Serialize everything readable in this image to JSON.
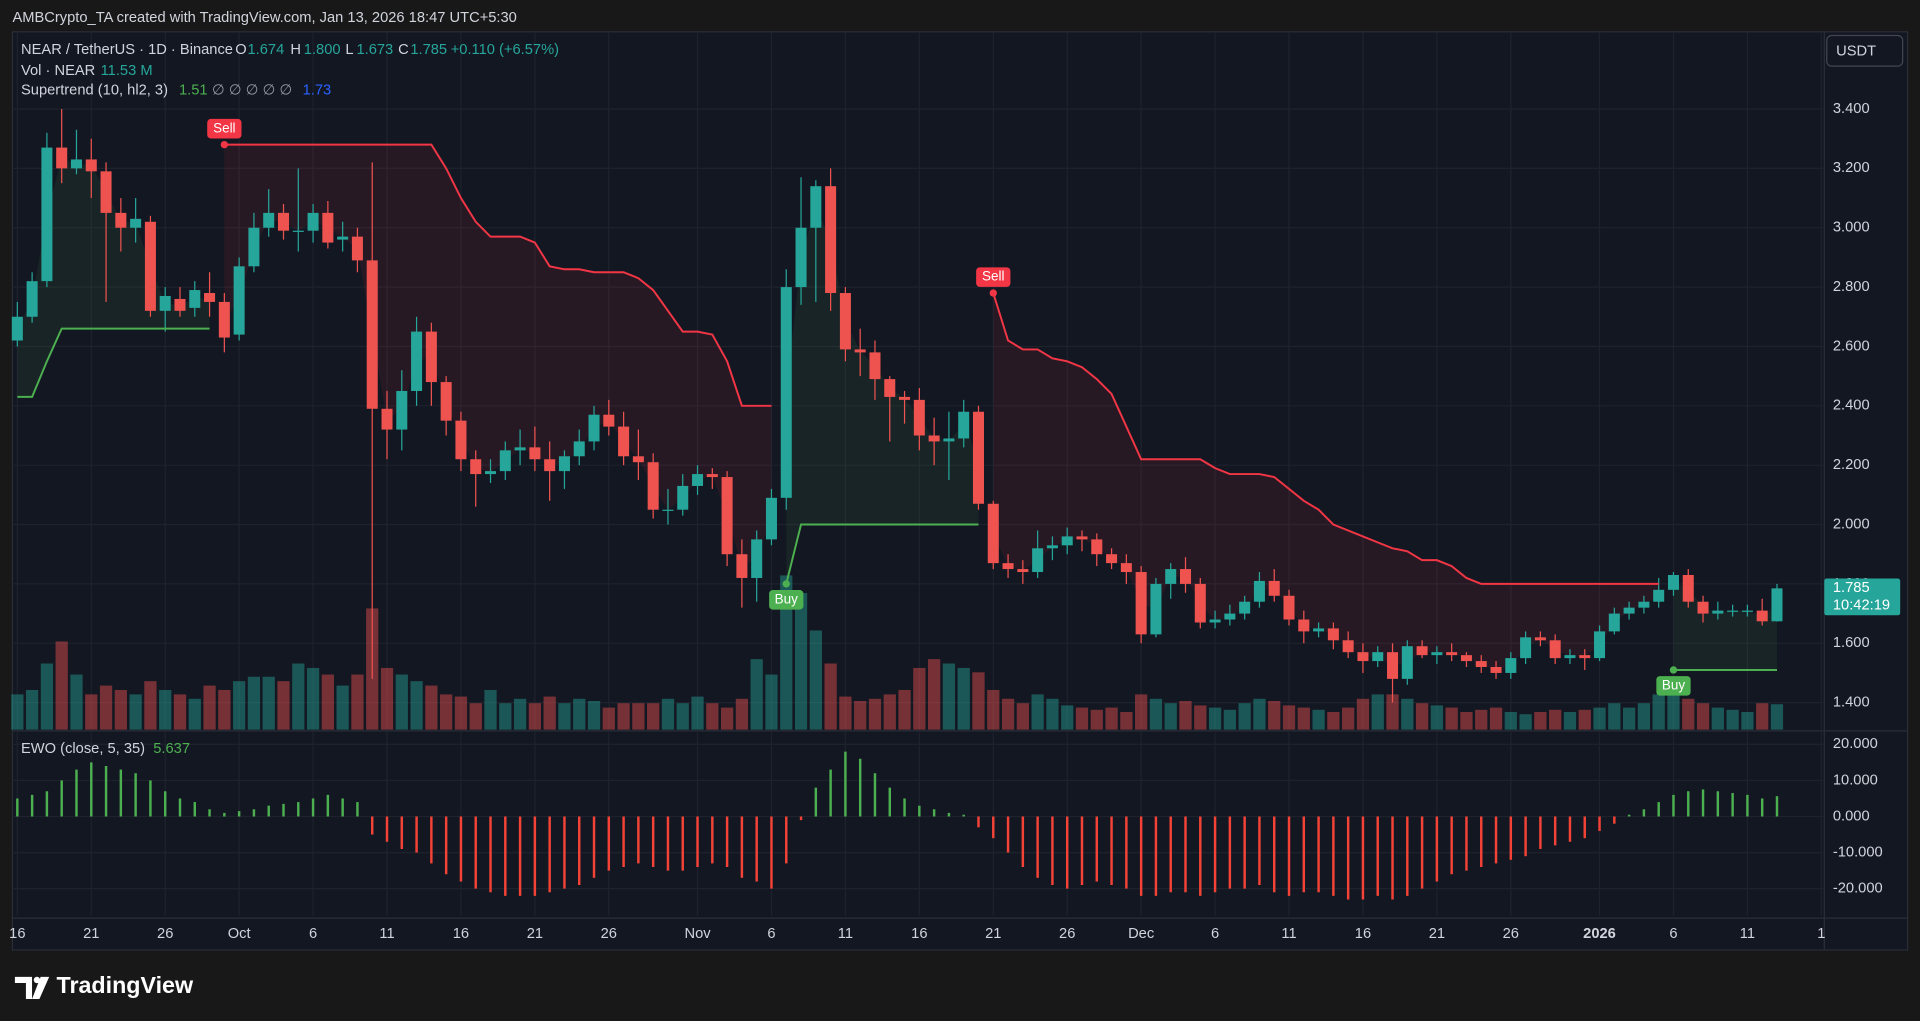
{
  "header": "AMBCrypto_TA created with TradingView.com, Jan 13, 2026 18:47 UTC+5:30",
  "chart_data": {
    "type": "candlestick",
    "currency": "USDT",
    "legend": {
      "symbol": "NEAR / TetherUS · 1D · Binance",
      "o_label": "O",
      "open": "1.674",
      "h_label": "H",
      "high": "1.800",
      "l_label": "L",
      "low": "1.673",
      "c_label": "C",
      "close": "1.785",
      "change": "+0.110 (+6.57%)"
    },
    "grid": true,
    "up_color": "#26a69a",
    "down_color": "#ef5350",
    "xlim": [
      -0.33,
      122.2
    ],
    "xticks": [
      {
        "value": 0,
        "label": "16"
      },
      {
        "value": 5,
        "label": "21"
      },
      {
        "value": 10,
        "label": "26"
      },
      {
        "value": 15,
        "label": "Oct"
      },
      {
        "value": 20,
        "label": "6"
      },
      {
        "value": 25,
        "label": "11"
      },
      {
        "value": 30,
        "label": "16"
      },
      {
        "value": 35,
        "label": "21"
      },
      {
        "value": 40,
        "label": "26"
      },
      {
        "value": 46,
        "label": "Nov"
      },
      {
        "value": 51,
        "label": "6"
      },
      {
        "value": 56,
        "label": "11"
      },
      {
        "value": 61,
        "label": "16"
      },
      {
        "value": 66,
        "label": "21"
      },
      {
        "value": 71,
        "label": "26"
      },
      {
        "value": 76,
        "label": "Dec"
      },
      {
        "value": 81,
        "label": "6"
      },
      {
        "value": 86,
        "label": "11"
      },
      {
        "value": 91,
        "label": "16"
      },
      {
        "value": 96,
        "label": "21"
      },
      {
        "value": 101,
        "label": "26"
      },
      {
        "value": 107,
        "label": "2026"
      },
      {
        "value": 112,
        "label": "6"
      },
      {
        "value": 117,
        "label": "11"
      },
      {
        "value": 122,
        "label": "1"
      }
    ],
    "ylim": [
      1.309,
      3.66
    ],
    "yticks": [
      {
        "value": 1.4,
        "label": "1.400"
      },
      {
        "value": 1.6,
        "label": "1.600"
      },
      {
        "value": 1.8,
        "label": "1.800"
      },
      {
        "value": 2.0,
        "label": "2.000"
      },
      {
        "value": 2.2,
        "label": "2.200"
      },
      {
        "value": 2.4,
        "label": "2.400"
      },
      {
        "value": 2.6,
        "label": "2.600"
      },
      {
        "value": 2.8,
        "label": "2.800"
      },
      {
        "value": 3.0,
        "label": "3.000"
      },
      {
        "value": 3.2,
        "label": "3.200"
      },
      {
        "value": 3.4,
        "label": "3.400"
      }
    ],
    "open": [
      2.62,
      2.7,
      2.82,
      3.27,
      3.2,
      3.23,
      3.19,
      3.05,
      3.0,
      3.02,
      2.72,
      2.76,
      2.73,
      2.78,
      2.75,
      2.64,
      2.87,
      3.0,
      3.05,
      2.99,
      2.99,
      3.05,
      2.96,
      2.97,
      2.89,
      2.39,
      2.32,
      2.45,
      2.65,
      2.48,
      2.35,
      2.22,
      2.17,
      2.18,
      2.25,
      2.26,
      2.22,
      2.18,
      2.23,
      2.28,
      2.37,
      2.33,
      2.23,
      2.21,
      2.05,
      2.05,
      2.13,
      2.17,
      2.16,
      1.9,
      1.82,
      1.95,
      2.09,
      2.8,
      3.0,
      3.14,
      2.78,
      2.59,
      2.58,
      2.49,
      2.43,
      2.42,
      2.3,
      2.28,
      2.29,
      2.38,
      2.07,
      1.87,
      1.85,
      1.84,
      1.92,
      1.93,
      1.96,
      1.95,
      1.9,
      1.87,
      1.84,
      1.63,
      1.8,
      1.85,
      1.8,
      1.67,
      1.68,
      1.7,
      1.74,
      1.81,
      1.76,
      1.68,
      1.64,
      1.65,
      1.61,
      1.57,
      1.54,
      1.57,
      1.48,
      1.59,
      1.56,
      1.57,
      1.56,
      1.54,
      1.52,
      1.5,
      1.55,
      1.62,
      1.61,
      1.55,
      1.56,
      1.55,
      1.64,
      1.7,
      1.72,
      1.74,
      1.78,
      1.83,
      1.74,
      1.7,
      1.71,
      1.71,
      1.71,
      1.674
    ],
    "high": [
      2.75,
      2.85,
      3.32,
      3.4,
      3.33,
      3.3,
      3.22,
      3.1,
      3.1,
      3.04,
      2.8,
      2.8,
      2.82,
      2.85,
      2.78,
      2.9,
      3.05,
      3.13,
      3.08,
      3.2,
      3.08,
      3.09,
      3.02,
      3.0,
      3.22,
      2.45,
      2.52,
      2.7,
      2.68,
      2.5,
      2.38,
      2.25,
      2.22,
      2.28,
      2.32,
      2.33,
      2.28,
      2.25,
      2.32,
      2.4,
      2.42,
      2.38,
      2.32,
      2.24,
      2.12,
      2.17,
      2.2,
      2.19,
      2.18,
      1.95,
      1.98,
      2.12,
      2.86,
      3.17,
      3.16,
      3.2,
      2.8,
      2.66,
      2.62,
      2.5,
      2.45,
      2.46,
      2.36,
      2.38,
      2.42,
      2.4,
      2.08,
      1.9,
      1.88,
      1.98,
      1.96,
      1.99,
      1.98,
      1.97,
      1.92,
      1.9,
      1.86,
      1.82,
      1.87,
      1.89,
      1.82,
      1.71,
      1.73,
      1.76,
      1.84,
      1.85,
      1.78,
      1.71,
      1.67,
      1.67,
      1.64,
      1.6,
      1.59,
      1.6,
      1.61,
      1.61,
      1.59,
      1.6,
      1.57,
      1.56,
      1.54,
      1.57,
      1.64,
      1.64,
      1.63,
      1.58,
      1.58,
      1.66,
      1.72,
      1.74,
      1.76,
      1.82,
      1.84,
      1.85,
      1.76,
      1.74,
      1.73,
      1.73,
      1.75,
      1.8
    ],
    "low": [
      2.6,
      2.68,
      2.8,
      3.15,
      3.18,
      3.1,
      2.75,
      2.92,
      2.95,
      2.7,
      2.65,
      2.7,
      2.7,
      2.7,
      2.58,
      2.62,
      2.85,
      2.97,
      2.96,
      2.92,
      2.95,
      2.93,
      2.92,
      2.85,
      1.48,
      2.22,
      2.25,
      2.4,
      2.4,
      2.3,
      2.18,
      2.06,
      2.14,
      2.15,
      2.2,
      2.18,
      2.08,
      2.12,
      2.2,
      2.25,
      2.3,
      2.2,
      2.15,
      2.02,
      2.0,
      2.03,
      2.1,
      2.12,
      1.86,
      1.72,
      1.74,
      1.93,
      2.05,
      2.74,
      2.75,
      2.72,
      2.55,
      2.5,
      2.42,
      2.28,
      2.34,
      2.25,
      2.2,
      2.15,
      2.26,
      2.05,
      1.85,
      1.82,
      1.8,
      1.82,
      1.88,
      1.9,
      1.91,
      1.86,
      1.85,
      1.8,
      1.6,
      1.62,
      1.75,
      1.77,
      1.65,
      1.65,
      1.66,
      1.68,
      1.72,
      1.74,
      1.66,
      1.6,
      1.62,
      1.58,
      1.55,
      1.5,
      1.52,
      1.4,
      1.46,
      1.55,
      1.53,
      1.54,
      1.52,
      1.5,
      1.48,
      1.48,
      1.53,
      1.59,
      1.53,
      1.53,
      1.51,
      1.54,
      1.63,
      1.68,
      1.7,
      1.72,
      1.76,
      1.72,
      1.67,
      1.68,
      1.69,
      1.69,
      1.66,
      1.673
    ],
    "close": [
      2.7,
      2.82,
      3.27,
      3.2,
      3.23,
      3.19,
      3.05,
      3.0,
      3.03,
      2.72,
      2.77,
      2.72,
      2.79,
      2.75,
      2.63,
      2.87,
      3.0,
      3.05,
      2.99,
      2.99,
      3.05,
      2.95,
      2.97,
      2.89,
      2.39,
      2.32,
      2.45,
      2.65,
      2.48,
      2.35,
      2.22,
      2.17,
      2.18,
      2.25,
      2.26,
      2.22,
      2.18,
      2.23,
      2.28,
      2.37,
      2.33,
      2.23,
      2.21,
      2.05,
      2.05,
      2.13,
      2.17,
      2.16,
      1.9,
      1.82,
      1.95,
      2.09,
      2.8,
      3.0,
      3.14,
      2.78,
      2.59,
      2.58,
      2.49,
      2.43,
      2.42,
      2.3,
      2.28,
      2.29,
      2.38,
      2.07,
      1.87,
      1.85,
      1.84,
      1.92,
      1.93,
      1.96,
      1.95,
      1.9,
      1.87,
      1.84,
      1.63,
      1.8,
      1.85,
      1.8,
      1.67,
      1.68,
      1.7,
      1.74,
      1.81,
      1.76,
      1.68,
      1.64,
      1.65,
      1.61,
      1.57,
      1.54,
      1.57,
      1.48,
      1.59,
      1.56,
      1.57,
      1.56,
      1.54,
      1.52,
      1.5,
      1.55,
      1.62,
      1.61,
      1.55,
      1.56,
      1.55,
      1.64,
      1.7,
      1.72,
      1.74,
      1.78,
      1.83,
      1.74,
      1.7,
      1.71,
      1.71,
      1.71,
      1.674,
      1.785
    ],
    "volume": {
      "name": "Vol · NEAR",
      "value_label": "11.53 M",
      "values": [
        16,
        18,
        30,
        40,
        25,
        16,
        20,
        18,
        16,
        22,
        18,
        16,
        14,
        20,
        18,
        22,
        24,
        24,
        22,
        30,
        28,
        25,
        20,
        25,
        55,
        28,
        25,
        22,
        20,
        16,
        15,
        12,
        18,
        12,
        14,
        12,
        15,
        12,
        14,
        13,
        10,
        12,
        12,
        12,
        14,
        12,
        15,
        12,
        10,
        14,
        32,
        25,
        70,
        62,
        45,
        30,
        15,
        13,
        14,
        16,
        18,
        28,
        32,
        30,
        28,
        26,
        18,
        14,
        12,
        16,
        14,
        11,
        10,
        9,
        10,
        8,
        16,
        14,
        12,
        13,
        11,
        10,
        9,
        12,
        14,
        13,
        11,
        10,
        9,
        8,
        10,
        14,
        16,
        16,
        14,
        12,
        11,
        10,
        8,
        9,
        10,
        8,
        7,
        8,
        9,
        8,
        9,
        10,
        12,
        10,
        12,
        16,
        18,
        14,
        12,
        10,
        9,
        8,
        12,
        11.53
      ]
    },
    "supertrend": {
      "name": "Supertrend (10, hl2, 3)",
      "up_value": "1.51",
      "na": "∅ ∅ ∅ ∅ ∅",
      "down_value": "1.73",
      "signals": [
        "Sell",
        "Buy",
        "Sell",
        "Buy"
      ],
      "up": {
        "color": "#4caf50",
        "values": [
          2.43,
          2.43,
          2.55,
          2.66,
          2.66,
          2.66,
          2.66,
          2.66,
          2.66,
          2.66,
          2.66,
          2.66,
          2.66,
          2.66,
          null,
          null,
          null,
          null,
          null,
          null,
          null,
          null,
          null,
          null,
          null,
          null,
          null,
          null,
          null,
          null,
          null,
          null,
          null,
          null,
          null,
          null,
          null,
          null,
          null,
          null,
          null,
          null,
          null,
          null,
          null,
          null,
          null,
          null,
          null,
          null,
          null,
          null,
          1.8,
          2.0,
          2.0,
          2.0,
          2.0,
          2.0,
          2.0,
          2.0,
          2.0,
          2.0,
          2.0,
          2.0,
          2.0,
          2.0,
          null,
          null,
          null,
          null,
          null,
          null,
          null,
          null,
          null,
          null,
          null,
          null,
          null,
          null,
          null,
          null,
          null,
          null,
          null,
          null,
          null,
          null,
          null,
          null,
          null,
          null,
          null,
          null,
          null,
          null,
          null,
          null,
          null,
          null,
          null,
          null,
          null,
          null,
          null,
          null,
          null,
          null,
          null,
          null,
          null,
          null,
          1.51,
          1.51,
          1.51,
          1.51,
          1.51,
          1.51,
          1.51,
          1.51
        ]
      },
      "down": {
        "color": "#f23645",
        "values": [
          null,
          null,
          null,
          null,
          null,
          null,
          null,
          null,
          null,
          null,
          null,
          null,
          null,
          null,
          3.28,
          3.28,
          3.28,
          3.28,
          3.28,
          3.28,
          3.28,
          3.28,
          3.28,
          3.28,
          3.28,
          3.28,
          3.28,
          3.28,
          3.28,
          3.2,
          3.1,
          3.02,
          2.97,
          2.97,
          2.97,
          2.95,
          2.87,
          2.86,
          2.86,
          2.85,
          2.85,
          2.85,
          2.83,
          2.79,
          2.72,
          2.65,
          2.65,
          2.64,
          2.55,
          2.4,
          2.4,
          2.4,
          null,
          null,
          null,
          null,
          null,
          null,
          null,
          null,
          null,
          null,
          null,
          null,
          null,
          null,
          2.78,
          2.62,
          2.59,
          2.59,
          2.56,
          2.55,
          2.53,
          2.49,
          2.44,
          2.33,
          2.22,
          2.22,
          2.22,
          2.22,
          2.22,
          2.19,
          2.17,
          2.17,
          2.17,
          2.16,
          2.12,
          2.08,
          2.05,
          2.0,
          1.98,
          1.96,
          1.94,
          1.92,
          1.91,
          1.88,
          1.88,
          1.86,
          1.82,
          1.8,
          1.8,
          1.8,
          1.8,
          1.8,
          1.8,
          1.8,
          1.8,
          1.8,
          1.8,
          1.8,
          1.8,
          1.8,
          null,
          null,
          null,
          null,
          null,
          null,
          null,
          null
        ]
      }
    },
    "price_tag": {
      "price": "1.785",
      "countdown": "10:42:19"
    },
    "ewo": {
      "name": "EWO (close, 5, 35)",
      "value_label": "5.637",
      "up_color": "#4caf50",
      "down_color": "#f44336",
      "ylim": [
        -27.5,
        23.4
      ],
      "yticks": [
        {
          "value": -20,
          "label": "-20.000"
        },
        {
          "value": -10,
          "label": "-10.000"
        },
        {
          "value": 0,
          "label": "0.000"
        },
        {
          "value": 10,
          "label": "10.000"
        },
        {
          "value": 20,
          "label": "20.000"
        }
      ],
      "values": [
        5,
        6,
        7,
        10,
        13,
        15,
        14,
        13,
        12,
        10,
        7,
        5,
        4,
        2,
        1,
        1.5,
        2,
        3,
        3.5,
        4,
        5,
        6,
        5,
        4,
        -5,
        -7,
        -9,
        -10,
        -13,
        -16,
        -18,
        -20,
        -21,
        -22,
        -22,
        -22,
        -21,
        -20,
        -19,
        -17,
        -15,
        -14,
        -13,
        -14,
        -15,
        -15,
        -14,
        -13,
        -14,
        -17,
        -18,
        -20,
        -13,
        -1,
        8,
        13,
        18,
        16,
        12,
        8,
        5,
        3,
        2,
        1,
        0.5,
        -3,
        -6,
        -10,
        -14,
        -17,
        -19,
        -20,
        -19,
        -18,
        -19,
        -20,
        -22,
        -22,
        -21,
        -21,
        -22,
        -21,
        -20,
        -20,
        -19,
        -21,
        -22,
        -21,
        -21,
        -22,
        -23,
        -23,
        -22,
        -23,
        -22,
        -20,
        -18,
        -16,
        -15,
        -14,
        -13,
        -12,
        -11,
        -9,
        -8,
        -7,
        -6,
        -4,
        -2,
        0.5,
        2,
        4,
        6,
        7,
        7.5,
        7,
        6.5,
        6,
        5,
        5.637
      ]
    }
  },
  "footer": {
    "logo": "TradingView"
  }
}
